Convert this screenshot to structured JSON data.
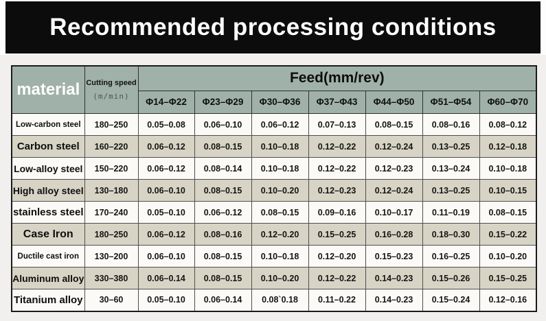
{
  "banner": {
    "title": "Recommended processing conditions"
  },
  "colors": {
    "banner_bg": "#0c0c0c",
    "banner_text": "#ffffff",
    "header_green": "#a0b1a9",
    "row_shaded": "#d8d4c5",
    "row_plain": "#fbfaf7",
    "page_bg": "#f1f0ee",
    "border_dark": "#1b1b1b"
  },
  "chart_data": {
    "type": "table",
    "title": "Recommended processing conditions",
    "header": {
      "material": "material",
      "cutting_speed": "Cutting speed",
      "cutting_speed_unit": "(m/min)",
      "feed_group": "Feed(mm/rev)",
      "feed_columns": [
        "Φ14–Φ22",
        "Φ23–Φ29",
        "Φ30–Φ36",
        "Φ37–Φ43",
        "Φ44–Φ50",
        "Φ51–Φ54",
        "Φ60–Φ70"
      ]
    },
    "rows": [
      {
        "material": "Low-carbon steel",
        "cutting_speed": "180–250",
        "feeds": [
          "0.05–0.08",
          "0.06–0.10",
          "0.06–0.12",
          "0.07–0.13",
          "0.08–0.15",
          "0.08–0.16",
          "0.08–0.12"
        ]
      },
      {
        "material": "Carbon steel",
        "cutting_speed": "160–220",
        "feeds": [
          "0.06–0.12",
          "0.08–0.15",
          "0.10–0.18",
          "0.12–0.22",
          "0.12–0.24",
          "0.13–0.25",
          "0.12–0.18"
        ]
      },
      {
        "material": "Low-alloy steel",
        "cutting_speed": "150–220",
        "feeds": [
          "0.06–0.12",
          "0.08–0.14",
          "0.10–0.18",
          "0.12–0.22",
          "0.12–0.23",
          "0.13–0.24",
          "0.10–0.18"
        ]
      },
      {
        "material": "High alloy steel",
        "cutting_speed": "130–180",
        "feeds": [
          "0.06–0.10",
          "0.08–0.15",
          "0.10–0.20",
          "0.12–0.23",
          "0.12–0.24",
          "0.13–0.25",
          "0.10–0.15"
        ]
      },
      {
        "material": "stainless steel",
        "cutting_speed": "170–240",
        "feeds": [
          "0.05–0.10",
          "0.06–0.12",
          "0.08–0.15",
          "0.09–0.16",
          "0.10–0.17",
          "0.11–0.19",
          "0.08–0.15"
        ]
      },
      {
        "material": "Case Iron",
        "cutting_speed": "180–250",
        "feeds": [
          "0.06–0.12",
          "0.08–0.16",
          "0.12–0.20",
          "0.15–0.25",
          "0.16–0.28",
          "0.18–0.30",
          "0.15–0.22"
        ]
      },
      {
        "material": "Ductile cast iron",
        "cutting_speed": "130–200",
        "feeds": [
          "0.06–0.10",
          "0.08–0.15",
          "0.10–0.18",
          "0.12–0.20",
          "0.15–0.23",
          "0.16–0.25",
          "0.10–0.20"
        ]
      },
      {
        "material": "Aluminum alloy",
        "cutting_speed": "330–380",
        "feeds": [
          "0.06–0.14",
          "0.08–0.15",
          "0.10–0.20",
          "0.12–0.22",
          "0.14–0.23",
          "0.15–0.26",
          "0.15–0.25"
        ]
      },
      {
        "material": "Titanium alloy",
        "cutting_speed": "30–60",
        "feeds": [
          "0.05–0.10",
          "0.06–0.14",
          "0.08`0.18",
          "0.11–0.22",
          "0.14–0.23",
          "0.15–0.24",
          "0.12–0.16"
        ]
      }
    ]
  }
}
